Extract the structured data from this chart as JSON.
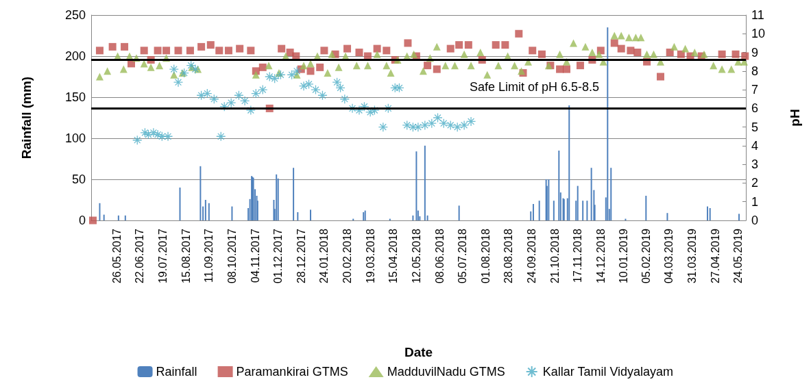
{
  "chart_data": {
    "type": "scatter",
    "xlabel": "Date",
    "ylabel": "Rainfall (mm)",
    "y2label": "pH",
    "annotations": [
      "Safe Limit of pH 6.5-8.5"
    ],
    "xlim": [
      "2017-04-26",
      "2019-06-02"
    ],
    "xticks": [
      {
        "value": "2017-05-26",
        "label": "26.05.2017"
      },
      {
        "value": "2017-06-22",
        "label": "22.06.2017"
      },
      {
        "value": "2017-07-19",
        "label": "19.07.2017"
      },
      {
        "value": "2017-08-15",
        "label": "15.08.2017"
      },
      {
        "value": "2017-09-11",
        "label": "11.09.2017"
      },
      {
        "value": "2017-10-08",
        "label": "08.10.2017"
      },
      {
        "value": "2017-11-04",
        "label": "04.11.2017"
      },
      {
        "value": "2017-12-01",
        "label": "01.12.2017"
      },
      {
        "value": "2017-12-28",
        "label": "28.12.2017"
      },
      {
        "value": "2018-01-24",
        "label": "24.01.2018"
      },
      {
        "value": "2018-02-20",
        "label": "20.02.2018"
      },
      {
        "value": "2018-03-19",
        "label": "19.03.2018"
      },
      {
        "value": "2018-04-15",
        "label": "15.04.2018"
      },
      {
        "value": "2018-05-12",
        "label": "12.05.2018"
      },
      {
        "value": "2018-06-08",
        "label": "08.06.2018"
      },
      {
        "value": "2018-07-05",
        "label": "05.07.2018"
      },
      {
        "value": "2018-08-01",
        "label": "01.08.2018"
      },
      {
        "value": "2018-08-28",
        "label": "28.08.2018"
      },
      {
        "value": "2018-09-24",
        "label": "24.09.2018"
      },
      {
        "value": "2018-10-21",
        "label": "21.10.2018"
      },
      {
        "value": "2018-11-17",
        "label": "17.11.2018"
      },
      {
        "value": "2018-12-14",
        "label": "14.12.2018"
      },
      {
        "value": "2019-01-10",
        "label": "10.01.2019"
      },
      {
        "value": "2019-02-05",
        "label": "05.02.2019"
      },
      {
        "value": "2019-03-04",
        "label": "04.03.2019"
      },
      {
        "value": "2019-03-31",
        "label": "31.03.2019"
      },
      {
        "value": "2019-04-27",
        "label": "27.04.2019"
      },
      {
        "value": "2019-05-24",
        "label": "24.05.2019"
      }
    ],
    "ylim": [
      0,
      250
    ],
    "yticks": [
      0,
      50,
      100,
      150,
      200,
      250
    ],
    "y2lim": [
      0,
      11
    ],
    "y2ticks": [
      0,
      1,
      2,
      3,
      4,
      5,
      6,
      7,
      8,
      9,
      10,
      11
    ],
    "grid": "y",
    "legend": "bottom",
    "ref_lines": [
      {
        "axis": "y2",
        "value": 8.6,
        "color": "#000000",
        "line_style": "solid"
      },
      {
        "axis": "y2",
        "value": 6.0,
        "color": "#000000",
        "line_style": "solid"
      }
    ],
    "series": [
      {
        "name": "Rainfall",
        "type": "bar",
        "color": "#4f81bd",
        "x": [
          "2017-05-06",
          "2017-05-11",
          "2017-05-28",
          "2017-06-05",
          "2017-08-08",
          "2017-09-01",
          "2017-09-04",
          "2017-09-07",
          "2017-09-11",
          "2017-10-08",
          "2017-10-27",
          "2017-10-29",
          "2017-10-31",
          "2017-11-01",
          "2017-11-02",
          "2017-11-04",
          "2017-11-06",
          "2017-11-07",
          "2017-11-26",
          "2017-11-27",
          "2017-11-29",
          "2017-12-01",
          "2017-12-19",
          "2017-12-24",
          "2018-01-08",
          "2018-02-27",
          "2018-03-11",
          "2018-03-13",
          "2018-04-11",
          "2018-05-08",
          "2018-05-12",
          "2018-05-14",
          "2018-05-16",
          "2018-05-22",
          "2018-05-25",
          "2018-07-01",
          "2018-09-23",
          "2018-09-26",
          "2018-10-03",
          "2018-10-11",
          "2018-10-12",
          "2018-10-14",
          "2018-10-20",
          "2018-10-26",
          "2018-10-28",
          "2018-10-31",
          "2018-11-01",
          "2018-11-05",
          "2018-11-07",
          "2018-11-15",
          "2018-11-17",
          "2018-11-23",
          "2018-11-28",
          "2018-12-03",
          "2018-12-06",
          "2018-12-07",
          "2018-12-20",
          "2018-12-22",
          "2018-12-24",
          "2018-12-26",
          "2019-01-12",
          "2019-02-05",
          "2019-03-02",
          "2019-04-18",
          "2019-04-21",
          "2019-05-25"
        ],
        "values": [
          21,
          7,
          6,
          6,
          40,
          66,
          17,
          25,
          21,
          17,
          15,
          26,
          54,
          53,
          52,
          38,
          30,
          24,
          25,
          14,
          56,
          51,
          64,
          10,
          13,
          2,
          10,
          12,
          2,
          6,
          84,
          12,
          5,
          91,
          6,
          18,
          11,
          20,
          24,
          50,
          42,
          50,
          24,
          85,
          34,
          27,
          26,
          27,
          140,
          24,
          42,
          24,
          24,
          64,
          37,
          19,
          28,
          235,
          14,
          64,
          2,
          30,
          9,
          17,
          15,
          8
        ]
      },
      {
        "name": "Paramankirai GTMS",
        "axis": "y2",
        "marker": "square",
        "color": "#c0504d",
        "x": [
          "2017-04-28",
          "2017-05-06",
          "2017-05-21",
          "2017-06-04",
          "2017-06-12",
          "2017-06-27",
          "2017-07-05",
          "2017-07-13",
          "2017-07-23",
          "2017-08-06",
          "2017-08-20",
          "2017-09-02",
          "2017-09-13",
          "2017-09-23",
          "2017-10-04",
          "2017-10-17",
          "2017-10-30",
          "2017-11-05",
          "2017-11-13",
          "2017-11-21",
          "2017-12-05",
          "2017-12-15",
          "2017-12-22",
          "2017-12-28",
          "2018-01-08",
          "2018-01-19",
          "2018-01-24",
          "2018-02-06",
          "2018-02-20",
          "2018-03-06",
          "2018-03-16",
          "2018-03-27",
          "2018-04-07",
          "2018-04-17",
          "2018-05-02",
          "2018-05-12",
          "2018-05-25",
          "2018-06-05",
          "2018-06-21",
          "2018-07-01",
          "2018-07-12",
          "2018-07-28",
          "2018-08-13",
          "2018-08-24",
          "2018-09-09",
          "2018-09-14",
          "2018-09-25",
          "2018-10-06",
          "2018-10-16",
          "2018-10-27",
          "2018-11-04",
          "2018-11-20",
          "2018-12-04",
          "2018-12-14",
          "2018-12-30",
          "2019-01-07",
          "2019-01-18",
          "2019-01-26",
          "2019-02-06",
          "2019-02-22",
          "2019-03-05",
          "2019-03-18",
          "2019-03-29",
          "2019-04-11",
          "2019-05-05",
          "2019-05-21",
          "2019-06-01"
        ],
        "values": [
          0,
          9.1,
          9.3,
          9.3,
          8.4,
          9.1,
          8.6,
          9.1,
          9.1,
          9.1,
          9.1,
          9.3,
          9.4,
          9.1,
          9.1,
          9.2,
          9.1,
          8.0,
          8.2,
          6.0,
          9.2,
          9.0,
          8.8,
          8.1,
          8.0,
          8.2,
          9.1,
          8.9,
          9.2,
          9.0,
          8.8,
          9.2,
          9.1,
          8.6,
          9.5,
          8.8,
          8.3,
          8.1,
          9.2,
          9.4,
          9.4,
          8.6,
          9.4,
          9.4,
          10.0,
          7.9,
          9.1,
          8.9,
          8.3,
          8.1,
          8.1,
          8.3,
          8.6,
          9.1,
          9.5,
          9.2,
          9.1,
          9.0,
          8.5,
          7.7,
          9.0,
          8.9,
          8.8,
          8.8,
          8.9,
          8.9,
          8.8
        ]
      },
      {
        "name": "MadduvilNadu GTMS",
        "axis": "y2",
        "marker": "triangle",
        "color": "#9bbb59",
        "x": [
          "2017-05-06",
          "2017-05-15",
          "2017-05-27",
          "2017-06-03",
          "2017-06-10",
          "2017-06-18",
          "2017-06-27",
          "2017-07-05",
          "2017-07-15",
          "2017-07-23",
          "2017-08-01",
          "2017-08-11",
          "2017-08-22",
          "2017-08-29",
          "2017-11-05",
          "2017-11-20",
          "2017-12-02",
          "2017-12-10",
          "2017-12-23",
          "2017-12-31",
          "2018-01-08",
          "2018-01-16",
          "2018-01-28",
          "2018-02-02",
          "2018-02-10",
          "2018-02-18",
          "2018-03-03",
          "2018-03-16",
          "2018-03-27",
          "2018-04-07",
          "2018-04-12",
          "2018-04-20",
          "2018-05-01",
          "2018-05-09",
          "2018-05-20",
          "2018-05-28",
          "2018-06-05",
          "2018-06-15",
          "2018-06-26",
          "2018-07-07",
          "2018-07-15",
          "2018-07-26",
          "2018-08-03",
          "2018-08-16",
          "2018-08-27",
          "2018-09-04",
          "2018-09-12",
          "2018-09-20",
          "2018-10-14",
          "2018-10-27",
          "2018-11-04",
          "2018-11-12",
          "2018-11-26",
          "2018-12-04",
          "2018-12-12",
          "2018-12-17",
          "2018-12-30",
          "2019-01-07",
          "2019-01-16",
          "2019-01-24",
          "2019-01-30",
          "2019-02-06",
          "2019-02-14",
          "2019-02-22",
          "2019-03-10",
          "2019-03-23",
          "2019-04-03",
          "2019-04-14",
          "2019-04-25",
          "2019-05-05",
          "2019-05-16",
          "2019-05-24",
          "2019-05-31"
        ],
        "values": [
          7.7,
          8.0,
          8.8,
          8.1,
          8.8,
          8.7,
          8.4,
          8.2,
          8.3,
          8.7,
          7.8,
          7.9,
          8.2,
          8.1,
          7.8,
          8.3,
          7.9,
          8.8,
          7.8,
          8.3,
          8.4,
          8.8,
          7.9,
          8.9,
          8.2,
          8.8,
          8.3,
          8.3,
          8.9,
          8.3,
          7.9,
          8.6,
          8.8,
          8.9,
          8.0,
          8.7,
          9.3,
          8.3,
          8.3,
          8.9,
          8.3,
          9.0,
          7.8,
          8.3,
          8.8,
          8.3,
          8.0,
          8.5,
          8.3,
          8.9,
          8.5,
          9.5,
          9.3,
          9.0,
          8.9,
          8.5,
          9.9,
          9.9,
          9.8,
          9.8,
          9.8,
          8.9,
          8.9,
          8.5,
          9.3,
          9.2,
          9.0,
          8.9,
          8.3,
          8.1,
          8.1,
          8.5,
          8.5
        ]
      },
      {
        "name": "Kallar Tamil Vidyalayam",
        "axis": "y2",
        "marker": "cross",
        "color": "#4bacc6",
        "x": [
          "2017-06-19",
          "2017-06-28",
          "2017-07-02",
          "2017-07-08",
          "2017-07-13",
          "2017-07-18",
          "2017-07-25",
          "2017-08-01",
          "2017-08-06",
          "2017-08-13",
          "2017-08-21",
          "2017-08-26",
          "2017-09-02",
          "2017-09-09",
          "2017-09-17",
          "2017-09-25",
          "2017-09-29",
          "2017-10-07",
          "2017-10-16",
          "2017-10-23",
          "2017-10-30",
          "2017-11-05",
          "2017-11-13",
          "2017-11-21",
          "2017-11-27",
          "2017-12-04",
          "2017-12-17",
          "2017-12-23",
          "2017-12-31",
          "2018-01-06",
          "2018-01-14",
          "2018-01-22",
          "2018-02-08",
          "2018-02-12",
          "2018-02-17",
          "2018-02-26",
          "2018-03-06",
          "2018-03-12",
          "2018-03-19",
          "2018-03-24",
          "2018-04-03",
          "2018-04-09",
          "2018-04-17",
          "2018-04-22",
          "2018-05-01",
          "2018-05-08",
          "2018-05-14",
          "2018-05-22",
          "2018-05-30",
          "2018-06-06",
          "2018-06-13",
          "2018-06-21",
          "2018-06-29",
          "2018-07-07",
          "2018-07-15"
        ],
        "values": [
          4.3,
          4.7,
          4.6,
          4.7,
          4.6,
          4.5,
          4.5,
          8.1,
          7.4,
          7.9,
          8.3,
          8.1,
          6.7,
          6.8,
          6.5,
          4.5,
          6.1,
          6.3,
          6.7,
          6.4,
          5.9,
          6.8,
          7.0,
          7.7,
          7.6,
          7.8,
          7.8,
          8.0,
          7.2,
          7.3,
          7.0,
          6.7,
          7.4,
          7.1,
          6.5,
          6.0,
          5.9,
          6.1,
          5.8,
          5.9,
          5.0,
          6.0,
          7.1,
          7.1,
          5.1,
          5.0,
          5.0,
          5.1,
          5.2,
          5.5,
          5.2,
          5.1,
          5.0,
          5.1,
          5.3
        ]
      }
    ]
  }
}
